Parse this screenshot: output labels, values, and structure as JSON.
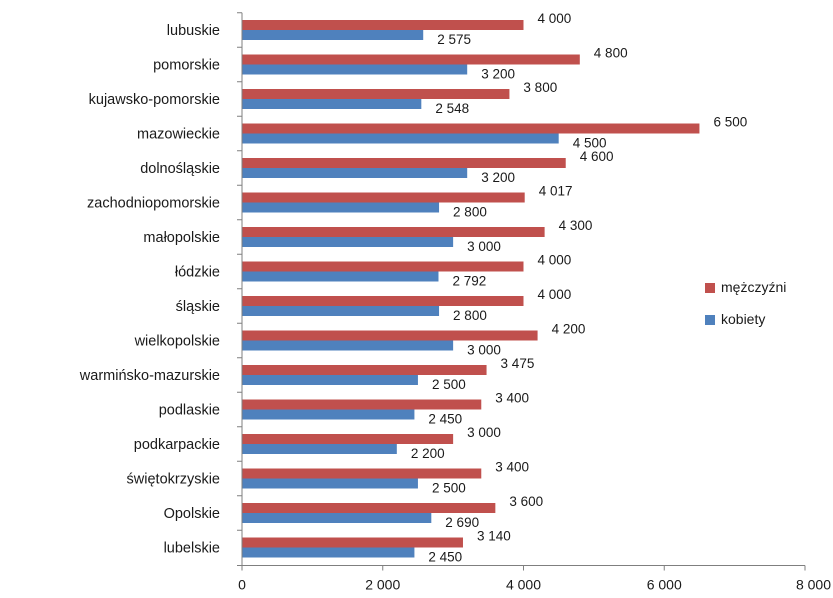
{
  "chart_data": {
    "type": "bar",
    "orientation": "horizontal",
    "title": "",
    "xlabel": "",
    "ylabel": "",
    "categories": [
      "lubuskie",
      "pomorskie",
      "kujawsko-pomorskie",
      "mazowieckie",
      "dolnośląskie",
      "zachodniopomorskie",
      "małopolskie",
      "łódzkie",
      "śląskie",
      "wielkopolskie",
      "warmińsko-mazurskie",
      "podlaskie",
      "podkarpackie",
      "świętokrzyskie",
      "Opolskie",
      "lubelskie"
    ],
    "series": [
      {
        "name": "mężczyźni",
        "color": "#c0504d",
        "values": [
          4000,
          4800,
          3800,
          6500,
          4600,
          4017,
          4300,
          4000,
          4000,
          4200,
          3475,
          3400,
          3000,
          3400,
          3600,
          3140
        ],
        "labels": [
          "4 000",
          "4 800",
          "3 800",
          "6 500",
          "4 600",
          "4 017",
          "4 300",
          "4 000",
          "4 000",
          "4 200",
          "3 475",
          "3 400",
          "3 000",
          "3 400",
          "3 600",
          "3 140"
        ]
      },
      {
        "name": "kobiety",
        "color": "#4f81bd",
        "values": [
          2575,
          3200,
          2548,
          4500,
          3200,
          2800,
          3000,
          2792,
          2800,
          3000,
          2500,
          2450,
          2200,
          2500,
          2690,
          2450
        ],
        "labels": [
          "2 575",
          "3 200",
          "2 548",
          "4 500",
          "3 200",
          "2 800",
          "3 000",
          "2 792",
          "2 800",
          "3 000",
          "2 500",
          "2 450",
          "2 200",
          "2 500",
          "2 690",
          "2 450"
        ]
      }
    ],
    "xlim": [
      0,
      8000
    ],
    "xticks": [
      0,
      2000,
      4000,
      6000,
      8000
    ],
    "xtick_labels": [
      "0",
      "2 000",
      "4 000",
      "6 000",
      "8 000"
    ],
    "grid": false,
    "legend": {
      "placement": "right",
      "entries": [
        "mężczyźni",
        "kobiety"
      ]
    }
  }
}
